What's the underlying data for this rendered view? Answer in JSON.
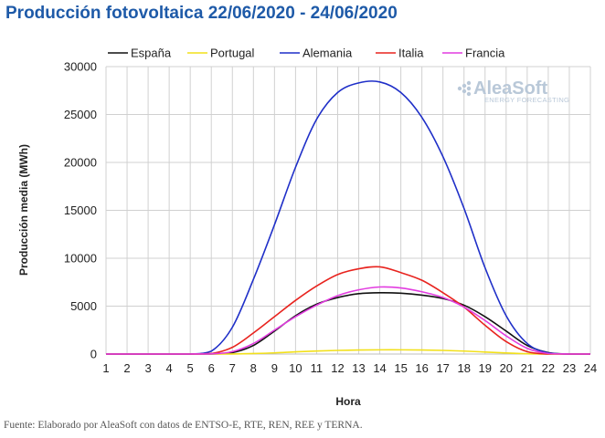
{
  "title": "Producción fotovoltaica 22/06/2020 - 24/06/2020",
  "source": "Fuente: Elaborado por AleaSoft con datos de ENTSO-E, RTE, REN, REE y TERNA.",
  "logo": {
    "name": "AleaSoft",
    "tagline": "ENERGY FORECASTING"
  },
  "chart_data": {
    "type": "line",
    "xlabel": "Hora",
    "ylabel": "Producción media (MWh)",
    "xlim": [
      1,
      24
    ],
    "ylim": [
      0,
      30000
    ],
    "yticks": [
      0,
      5000,
      10000,
      15000,
      20000,
      25000,
      30000
    ],
    "x": [
      1,
      2,
      3,
      4,
      5,
      6,
      7,
      8,
      9,
      10,
      11,
      12,
      13,
      14,
      15,
      16,
      17,
      18,
      19,
      20,
      21,
      22,
      23,
      24
    ],
    "legend_position": "top",
    "grid": true,
    "series": [
      {
        "name": "España",
        "color": "#111111",
        "values": [
          0,
          0,
          0,
          0,
          0,
          10,
          150,
          900,
          2400,
          4000,
          5200,
          5900,
          6300,
          6400,
          6350,
          6150,
          5800,
          5100,
          3900,
          2400,
          900,
          150,
          0,
          0
        ]
      },
      {
        "name": "Portugal",
        "color": "#f2e01a",
        "values": [
          0,
          0,
          0,
          0,
          0,
          0,
          10,
          50,
          120,
          230,
          320,
          380,
          420,
          440,
          440,
          420,
          380,
          310,
          210,
          110,
          30,
          0,
          0,
          0
        ]
      },
      {
        "name": "Alemania",
        "color": "#1f2fc8",
        "values": [
          0,
          0,
          0,
          0,
          0,
          300,
          2800,
          7800,
          13500,
          19500,
          24500,
          27300,
          28300,
          28400,
          27300,
          24700,
          20600,
          15200,
          9000,
          4000,
          1100,
          120,
          0,
          0
        ]
      },
      {
        "name": "Italia",
        "color": "#e8231e",
        "values": [
          0,
          0,
          0,
          0,
          0,
          50,
          700,
          2200,
          3900,
          5600,
          7100,
          8300,
          8900,
          9100,
          8500,
          7700,
          6400,
          4900,
          3000,
          1300,
          250,
          0,
          0,
          0
        ]
      },
      {
        "name": "Francia",
        "color": "#e23ce0",
        "values": [
          0,
          0,
          0,
          0,
          0,
          20,
          250,
          1100,
          2500,
          3900,
          5100,
          6100,
          6700,
          7000,
          6900,
          6500,
          5900,
          4900,
          3500,
          1900,
          600,
          60,
          0,
          0
        ]
      }
    ]
  }
}
